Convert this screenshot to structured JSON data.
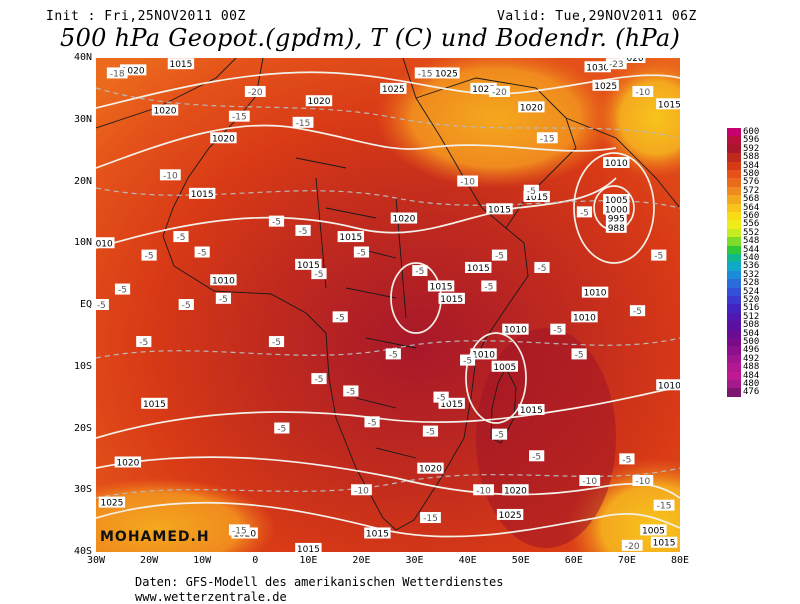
{
  "header": {
    "init": "Init : Fri,25NOV2011 00Z",
    "valid": "Valid: Tue,29NOV2011 06Z",
    "title": "500 hPa Geopot.(gpdm), T (C) und Bodendr. (hPa)"
  },
  "axes": {
    "y_ticks": [
      "40N",
      "30N",
      "20N",
      "10N",
      "EQ",
      "10S",
      "20S",
      "30S",
      "40S"
    ],
    "x_ticks": [
      "30W",
      "20W",
      "10W",
      "0",
      "10E",
      "20E",
      "30E",
      "40E",
      "50E",
      "60E",
      "70E",
      "80E"
    ],
    "lon_range": [
      -30,
      80
    ],
    "lat_range": [
      -40,
      40
    ]
  },
  "legend": {
    "values": [
      "600",
      "596",
      "592",
      "588",
      "584",
      "580",
      "576",
      "572",
      "568",
      "564",
      "560",
      "556",
      "552",
      "548",
      "544",
      "540",
      "536",
      "532",
      "528",
      "524",
      "520",
      "516",
      "512",
      "508",
      "504",
      "500",
      "496",
      "492",
      "488",
      "484",
      "480",
      "476"
    ],
    "colors": [
      "#c8006e",
      "#b81038",
      "#a8182a",
      "#c02a1e",
      "#d83a16",
      "#e4521a",
      "#ec6a1c",
      "#f08a1e",
      "#f4a81e",
      "#f8c41c",
      "#f8dc16",
      "#f0ec18",
      "#c8ec20",
      "#7cdc28",
      "#30c838",
      "#10b890",
      "#10a8c8",
      "#1a8cd8",
      "#2a6cdc",
      "#3450d8",
      "#3c38d0",
      "#4424c0",
      "#5018b0",
      "#5a10a0",
      "#680c94",
      "#7a0c8c",
      "#8c108c",
      "#a0168e",
      "#b41890",
      "#c01a92",
      "#a41a8a",
      "#7c1670"
    ]
  },
  "map": {
    "isobar_labels": [
      {
        "text": "1020",
        "lon": -23,
        "lat": 38
      },
      {
        "text": "1015",
        "lon": -14,
        "lat": 39
      },
      {
        "text": "1020",
        "lon": -17,
        "lat": 31.5
      },
      {
        "text": "1020",
        "lon": -6,
        "lat": 27
      },
      {
        "text": "1020",
        "lon": 12,
        "lat": 33
      },
      {
        "text": "1025",
        "lon": 26,
        "lat": 35
      },
      {
        "text": "1025",
        "lon": 36,
        "lat": 37.5
      },
      {
        "text": "1025",
        "lon": 43,
        "lat": 35
      },
      {
        "text": "1020",
        "lon": 52,
        "lat": 32
      },
      {
        "text": "1030",
        "lon": 64.5,
        "lat": 38.5
      },
      {
        "text": "1025",
        "lon": 66,
        "lat": 35.5
      },
      {
        "text": "1020",
        "lon": 71,
        "lat": 40
      },
      {
        "text": "1015",
        "lon": 78,
        "lat": 32.5
      },
      {
        "text": "1015",
        "lon": -10,
        "lat": 18
      },
      {
        "text": "1015",
        "lon": 18,
        "lat": 11
      },
      {
        "text": "1020",
        "lon": 28,
        "lat": 14
      },
      {
        "text": "1015",
        "lon": 46,
        "lat": 15.5
      },
      {
        "text": "1015",
        "lon": 53,
        "lat": 17.5
      },
      {
        "text": "1010",
        "lon": 68,
        "lat": 23
      },
      {
        "text": "1005",
        "lon": 68,
        "lat": 17
      },
      {
        "text": "1000",
        "lon": 68,
        "lat": 15.5
      },
      {
        "text": "995",
        "lon": 68,
        "lat": 14
      },
      {
        "text": "988",
        "lon": 68,
        "lat": 12.5
      },
      {
        "text": "1010",
        "lon": -29,
        "lat": 10
      },
      {
        "text": "1010",
        "lon": -6,
        "lat": 4
      },
      {
        "text": "1015",
        "lon": 10,
        "lat": 6.5
      },
      {
        "text": "1015",
        "lon": 35,
        "lat": 3
      },
      {
        "text": "1015",
        "lon": 37,
        "lat": 1
      },
      {
        "text": "1015",
        "lon": 42,
        "lat": 6
      },
      {
        "text": "1010",
        "lon": 64,
        "lat": 2
      },
      {
        "text": "1010",
        "lon": 62,
        "lat": -2
      },
      {
        "text": "1010",
        "lon": 49,
        "lat": -4
      },
      {
        "text": "1010",
        "lon": 43,
        "lat": -8
      },
      {
        "text": "1005",
        "lon": 47,
        "lat": -10
      },
      {
        "text": "1010",
        "lon": 78,
        "lat": -13
      },
      {
        "text": "1015",
        "lon": -19,
        "lat": -16
      },
      {
        "text": "1015",
        "lon": 37,
        "lat": -16
      },
      {
        "text": "1015",
        "lon": 52,
        "lat": -17
      },
      {
        "text": "1020",
        "lon": -24,
        "lat": -25.5
      },
      {
        "text": "1020",
        "lon": 33,
        "lat": -26.5
      },
      {
        "text": "1020",
        "lon": 49,
        "lat": -30
      },
      {
        "text": "1025",
        "lon": -27,
        "lat": -32
      },
      {
        "text": "1025",
        "lon": 48,
        "lat": -34
      },
      {
        "text": "1020",
        "lon": -2,
        "lat": -37
      },
      {
        "text": "1015",
        "lon": 10,
        "lat": -39.5
      },
      {
        "text": "1015",
        "lon": 23,
        "lat": -37
      },
      {
        "text": "1005",
        "lon": 75,
        "lat": -36.5
      },
      {
        "text": "1015",
        "lon": 77,
        "lat": -38.5
      }
    ],
    "temp_labels": [
      {
        "text": "-18",
        "lon": -26,
        "lat": 37.5
      },
      {
        "text": "-20",
        "lon": 0,
        "lat": 34.5
      },
      {
        "text": "-15",
        "lon": -3,
        "lat": 30.5
      },
      {
        "text": "-15",
        "lon": 9,
        "lat": 29.5
      },
      {
        "text": "-15",
        "lon": 32,
        "lat": 37.5
      },
      {
        "text": "-20",
        "lon": 46,
        "lat": 34.5
      },
      {
        "text": "-15",
        "lon": 55,
        "lat": 27
      },
      {
        "text": "-23",
        "lon": 68,
        "lat": 39
      },
      {
        "text": "-10",
        "lon": 73,
        "lat": 34.5
      },
      {
        "text": "-10",
        "lon": -16,
        "lat": 21
      },
      {
        "text": "-10",
        "lon": 40,
        "lat": 20
      },
      {
        "text": "-5",
        "lon": 52,
        "lat": 18.5
      },
      {
        "text": "-5",
        "lon": 62,
        "lat": 15
      },
      {
        "text": "-5",
        "lon": 4,
        "lat": 13.5
      },
      {
        "text": "-5",
        "lon": 9,
        "lat": 12
      },
      {
        "text": "-5",
        "lon": -14,
        "lat": 11
      },
      {
        "text": "-5",
        "lon": -20,
        "lat": 8
      },
      {
        "text": "-5",
        "lon": -10,
        "lat": 8.5
      },
      {
        "text": "-5",
        "lon": -25,
        "lat": 2.5
      },
      {
        "text": "-5",
        "lon": -6,
        "lat": 1
      },
      {
        "text": "-5",
        "lon": 12,
        "lat": 5
      },
      {
        "text": "-5",
        "lon": 20,
        "lat": 8.5
      },
      {
        "text": "-5",
        "lon": 31,
        "lat": 5.5
      },
      {
        "text": "-5",
        "lon": 44,
        "lat": 3
      },
      {
        "text": "-5",
        "lon": 46,
        "lat": 8
      },
      {
        "text": "-5",
        "lon": 54,
        "lat": 6
      },
      {
        "text": "-5",
        "lon": 57,
        "lat": -4
      },
      {
        "text": "-5",
        "lon": 72,
        "lat": -1
      },
      {
        "text": "-5",
        "lon": 76,
        "lat": 8
      },
      {
        "text": "-5",
        "lon": -29,
        "lat": 0
      },
      {
        "text": "-5",
        "lon": -13,
        "lat": 0
      },
      {
        "text": "-5",
        "lon": 4,
        "lat": -6
      },
      {
        "text": "-5",
        "lon": 16,
        "lat": -2
      },
      {
        "text": "-5",
        "lon": 26,
        "lat": -8
      },
      {
        "text": "-5",
        "lon": 40,
        "lat": -9
      },
      {
        "text": "-5",
        "lon": 61,
        "lat": -8
      },
      {
        "text": "-5",
        "lon": -21,
        "lat": -6
      },
      {
        "text": "-5",
        "lon": 12,
        "lat": -12
      },
      {
        "text": "-5",
        "lon": 18,
        "lat": -14
      },
      {
        "text": "-5",
        "lon": 35,
        "lat": -15
      },
      {
        "text": "-5",
        "lon": 5,
        "lat": -20
      },
      {
        "text": "-5",
        "lon": 22,
        "lat": -19
      },
      {
        "text": "-5",
        "lon": 33,
        "lat": -20.5
      },
      {
        "text": "-5",
        "lon": 46,
        "lat": -21
      },
      {
        "text": "-5",
        "lon": 53,
        "lat": -24.5
      },
      {
        "text": "-5",
        "lon": 70,
        "lat": -25
      },
      {
        "text": "-10",
        "lon": 20,
        "lat": -30
      },
      {
        "text": "-10",
        "lon": 43,
        "lat": -30
      },
      {
        "text": "-10",
        "lon": 63,
        "lat": -28.5
      },
      {
        "text": "-10",
        "lon": 73,
        "lat": -28.5
      },
      {
        "text": "-15",
        "lon": 33,
        "lat": -34.5
      },
      {
        "text": "-15",
        "lon": -3,
        "lat": -36.5
      },
      {
        "text": "-15",
        "lon": 77,
        "lat": -32.5
      },
      {
        "text": "-20",
        "lon": 71,
        "lat": -39
      }
    ]
  },
  "footer": {
    "credit": "MOHAMED.H",
    "source_line1": "Daten: GFS-Modell des amerikanischen Wetterdienstes",
    "source_line2": "www.wetterzentrale.de"
  }
}
